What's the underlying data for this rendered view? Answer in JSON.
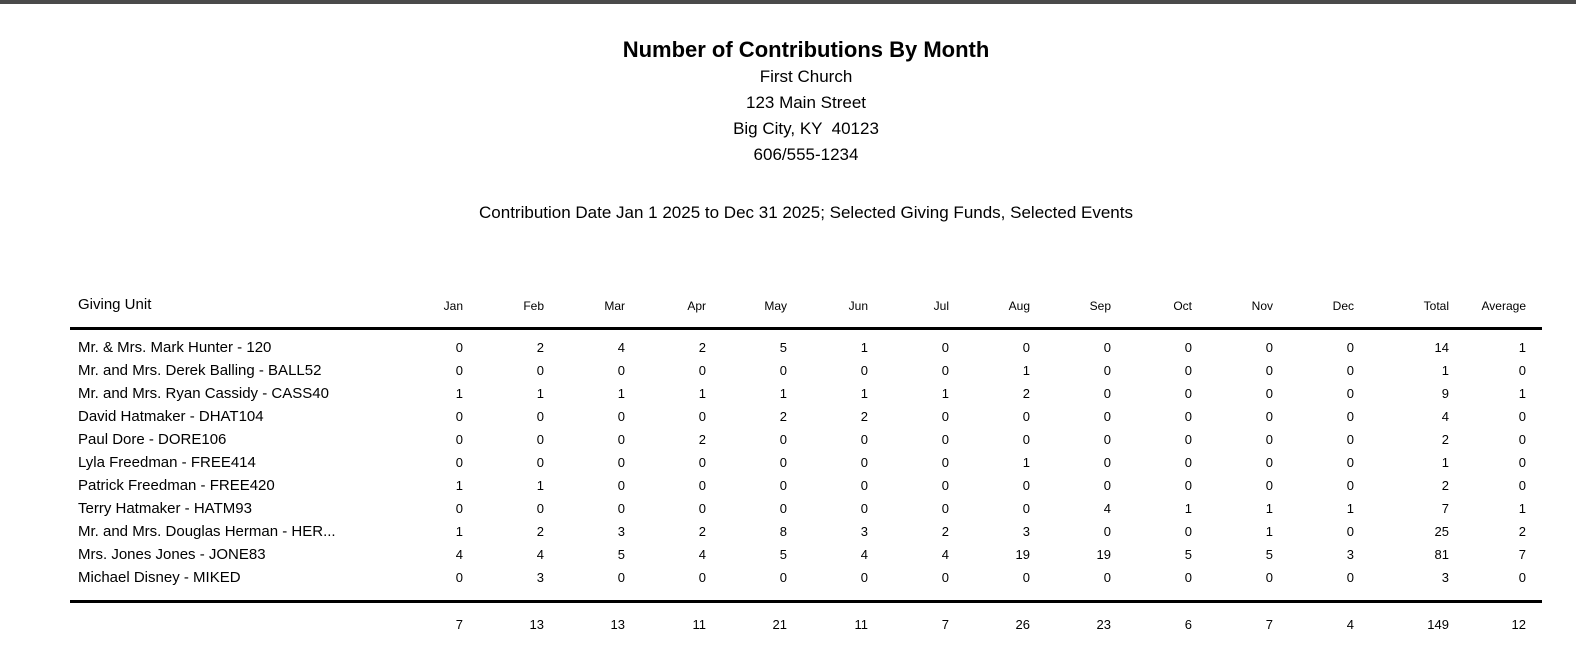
{
  "page": {
    "top_bar_color": "#4a4a4a",
    "background_color": "#ffffff",
    "text_color": "#000000"
  },
  "header": {
    "title": "Number of Contributions By Month",
    "organization": "First Church",
    "address_line": "123 Main Street",
    "city_line": "Big City, KY  40123",
    "phone": "606/555-1234",
    "criteria": "Contribution Date Jan 1 2025 to Dec 31 2025; Selected Giving Funds, Selected Events"
  },
  "table": {
    "columns": [
      "Giving Unit",
      "Jan",
      "Feb",
      "Mar",
      "Apr",
      "May",
      "Jun",
      "Jul",
      "Aug",
      "Sep",
      "Oct",
      "Nov",
      "Dec",
      "Total",
      "Average"
    ],
    "rows": [
      {
        "giving_unit": "Mr. & Mrs. Mark Hunter - 120",
        "values": [
          0,
          2,
          4,
          2,
          5,
          1,
          0,
          0,
          0,
          0,
          0,
          0,
          14,
          1
        ]
      },
      {
        "giving_unit": "Mr. and Mrs. Derek Balling - BALL52",
        "values": [
          0,
          0,
          0,
          0,
          0,
          0,
          0,
          1,
          0,
          0,
          0,
          0,
          1,
          0
        ]
      },
      {
        "giving_unit": "Mr. and Mrs. Ryan Cassidy - CASS40",
        "values": [
          1,
          1,
          1,
          1,
          1,
          1,
          1,
          2,
          0,
          0,
          0,
          0,
          9,
          1
        ]
      },
      {
        "giving_unit": "David Hatmaker - DHAT104",
        "values": [
          0,
          0,
          0,
          0,
          2,
          2,
          0,
          0,
          0,
          0,
          0,
          0,
          4,
          0
        ]
      },
      {
        "giving_unit": "Paul Dore - DORE106",
        "values": [
          0,
          0,
          0,
          2,
          0,
          0,
          0,
          0,
          0,
          0,
          0,
          0,
          2,
          0
        ]
      },
      {
        "giving_unit": "Lyla Freedman - FREE414",
        "values": [
          0,
          0,
          0,
          0,
          0,
          0,
          0,
          1,
          0,
          0,
          0,
          0,
          1,
          0
        ]
      },
      {
        "giving_unit": "Patrick Freedman - FREE420",
        "values": [
          1,
          1,
          0,
          0,
          0,
          0,
          0,
          0,
          0,
          0,
          0,
          0,
          2,
          0
        ]
      },
      {
        "giving_unit": "Terry Hatmaker - HATM93",
        "values": [
          0,
          0,
          0,
          0,
          0,
          0,
          0,
          0,
          4,
          1,
          1,
          1,
          7,
          1
        ]
      },
      {
        "giving_unit": "Mr. and Mrs. Douglas Herman - HER...",
        "values": [
          1,
          2,
          3,
          2,
          8,
          3,
          2,
          3,
          0,
          0,
          1,
          0,
          25,
          2
        ]
      },
      {
        "giving_unit": "Mrs. Jones Jones - JONE83",
        "values": [
          4,
          4,
          5,
          4,
          5,
          4,
          4,
          19,
          19,
          5,
          5,
          3,
          81,
          7
        ]
      },
      {
        "giving_unit": "Michael Disney - MIKED",
        "values": [
          0,
          3,
          0,
          0,
          0,
          0,
          0,
          0,
          0,
          0,
          0,
          0,
          3,
          0
        ]
      }
    ],
    "totals": [
      7,
      13,
      13,
      11,
      21,
      11,
      7,
      26,
      23,
      6,
      7,
      4,
      149,
      12
    ]
  }
}
